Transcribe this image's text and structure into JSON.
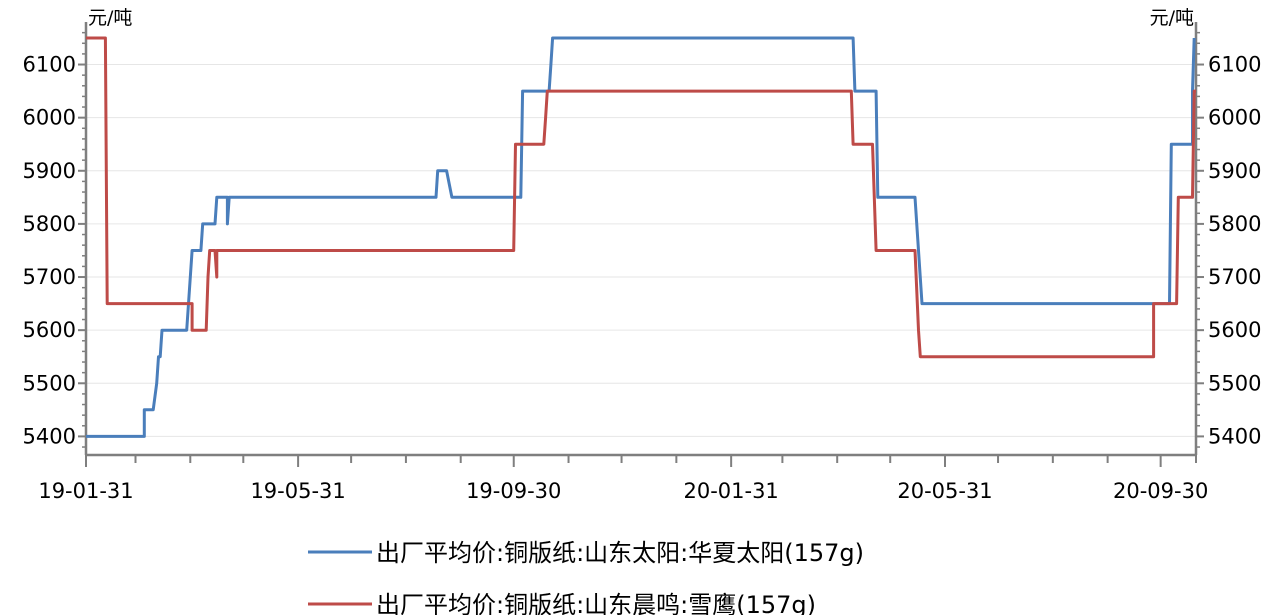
{
  "chart_data": {
    "type": "line",
    "y_unit_left": "元/吨",
    "y_unit_right": "元/吨",
    "ylim": [
      5365,
      6165
    ],
    "y_ticks": [
      5400,
      5500,
      5600,
      5700,
      5800,
      5900,
      6000,
      6100
    ],
    "x_range": [
      "2019-01-31",
      "2020-10-20"
    ],
    "x_tick_labels": [
      {
        "date": "2019-01-31",
        "label": "19-01-31"
      },
      {
        "date": "2019-05-31",
        "label": "19-05-31"
      },
      {
        "date": "2019-09-30",
        "label": "19-09-30"
      },
      {
        "date": "2020-01-31",
        "label": "20-01-31"
      },
      {
        "date": "2020-05-31",
        "label": "20-05-31"
      },
      {
        "date": "2020-09-30",
        "label": "20-09-30"
      }
    ],
    "x_minor_ticks": [
      "2019-02-28",
      "2019-03-31",
      "2019-04-30",
      "2019-06-30",
      "2019-07-31",
      "2019-08-31",
      "2019-10-31",
      "2019-11-30",
      "2019-12-31",
      "2020-02-29",
      "2020-03-31",
      "2020-04-30",
      "2020-06-30",
      "2020-07-31",
      "2020-08-31",
      "2020-10-20"
    ],
    "grid": true,
    "legend_position": "bottom",
    "series": [
      {
        "name": "出厂平均价:铜版纸:山东太阳:华夏太阳(157g)",
        "color": "#4a7ebb",
        "points": [
          [
            "2019-01-31",
            5400
          ],
          [
            "2019-03-05",
            5400
          ],
          [
            "2019-03-05",
            5450
          ],
          [
            "2019-03-10",
            5450
          ],
          [
            "2019-03-12",
            5500
          ],
          [
            "2019-03-13",
            5550
          ],
          [
            "2019-03-14",
            5550
          ],
          [
            "2019-03-15",
            5600
          ],
          [
            "2019-03-29",
            5600
          ],
          [
            "2019-04-01",
            5750
          ],
          [
            "2019-04-06",
            5750
          ],
          [
            "2019-04-07",
            5800
          ],
          [
            "2019-04-14",
            5800
          ],
          [
            "2019-04-15",
            5850
          ],
          [
            "2019-04-21",
            5850
          ],
          [
            "2019-04-21",
            5800
          ],
          [
            "2019-04-22",
            5850
          ],
          [
            "2019-08-17",
            5850
          ],
          [
            "2019-08-18",
            5900
          ],
          [
            "2019-08-23",
            5900
          ],
          [
            "2019-08-26",
            5850
          ],
          [
            "2019-09-05",
            5850
          ],
          [
            "2019-10-04",
            5850
          ],
          [
            "2019-10-05",
            6050
          ],
          [
            "2019-10-20",
            6050
          ],
          [
            "2019-10-21",
            6100
          ],
          [
            "2019-10-22",
            6150
          ],
          [
            "2020-04-09",
            6150
          ],
          [
            "2020-04-10",
            6050
          ],
          [
            "2020-04-22",
            6050
          ],
          [
            "2020-04-23",
            5850
          ],
          [
            "2020-05-14",
            5850
          ],
          [
            "2020-05-16",
            5750
          ],
          [
            "2020-05-18",
            5650
          ],
          [
            "2020-09-25",
            5650
          ],
          [
            "2020-10-05",
            5650
          ],
          [
            "2020-10-06",
            5950
          ],
          [
            "2020-10-18",
            5950
          ],
          [
            "2020-10-18",
            6050
          ],
          [
            "2020-10-19",
            6150
          ]
        ]
      },
      {
        "name": "出厂平均价:铜版纸:山东晨鸣:雪鹰(157g)",
        "color": "#be4b48",
        "points": [
          [
            "2019-01-31",
            6150
          ],
          [
            "2019-02-11",
            6150
          ],
          [
            "2019-02-12",
            5650
          ],
          [
            "2019-04-01",
            5650
          ],
          [
            "2019-04-01",
            5600
          ],
          [
            "2019-04-09",
            5600
          ],
          [
            "2019-04-10",
            5700
          ],
          [
            "2019-04-11",
            5750
          ],
          [
            "2019-04-14",
            5750
          ],
          [
            "2019-04-15",
            5700
          ],
          [
            "2019-04-15",
            5750
          ],
          [
            "2019-09-30",
            5750
          ],
          [
            "2019-10-01",
            5950
          ],
          [
            "2019-10-17",
            5950
          ],
          [
            "2019-10-18",
            6000
          ],
          [
            "2019-10-19",
            6050
          ],
          [
            "2020-04-08",
            6050
          ],
          [
            "2020-04-09",
            5950
          ],
          [
            "2020-04-20",
            5950
          ],
          [
            "2020-04-22",
            5750
          ],
          [
            "2020-05-14",
            5750
          ],
          [
            "2020-05-16",
            5600
          ],
          [
            "2020-05-17",
            5550
          ],
          [
            "2020-09-26",
            5550
          ],
          [
            "2020-09-26",
            5650
          ],
          [
            "2020-10-09",
            5650
          ],
          [
            "2020-10-10",
            5850
          ],
          [
            "2020-10-18",
            5850
          ],
          [
            "2020-10-19",
            6050
          ],
          [
            "2020-10-20",
            6050
          ]
        ]
      }
    ]
  }
}
